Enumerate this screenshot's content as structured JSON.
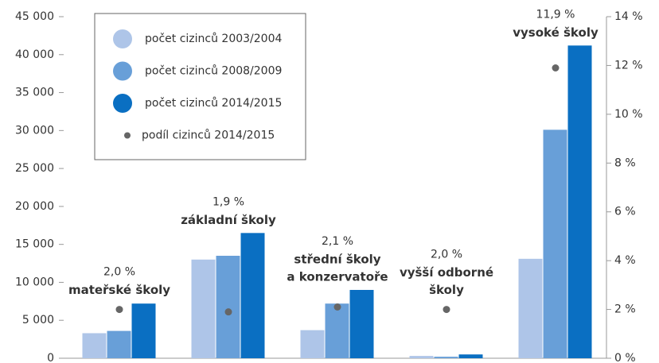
{
  "chart_data": {
    "type": "bar",
    "categories": [
      [
        "mateřské školy"
      ],
      [
        "základní školy"
      ],
      [
        "střední školy",
        "a konzervatoře"
      ],
      [
        "vyšší odborné",
        "školy"
      ],
      [
        "vysoké školy"
      ]
    ],
    "series": [
      {
        "name": "počet cizinců  2003/2004",
        "color": "#aec5e8",
        "values": [
          3300,
          13000,
          3700,
          300,
          13100
        ]
      },
      {
        "name": "počet cizinců  2008/2009",
        "color": "#689fd8",
        "values": [
          3600,
          13500,
          7200,
          200,
          30100
        ]
      },
      {
        "name": "počet cizinců  2014/2015",
        "color": "#0a6fc2",
        "values": [
          7200,
          16500,
          9000,
          500,
          41200
        ]
      },
      {
        "name": "podíl cizinců 2014/2015",
        "color": "#666666",
        "axis": "y2",
        "values": [
          2.0,
          1.9,
          2.1,
          2.0,
          11.9
        ],
        "value_labels": [
          "2,0 %",
          "1,9 %",
          "2,1 %",
          "2,0 %",
          "11,9 %"
        ]
      }
    ],
    "ylim": [
      0,
      45000
    ],
    "yticks": [
      0,
      {
        "value": 5000,
        "label": "5 000"
      },
      {
        "value": 10000,
        "label": "10 000"
      },
      {
        "value": 15000,
        "label": "15 000"
      },
      {
        "value": 20000,
        "label": "20 000"
      },
      {
        "value": 25000,
        "label": "25 000"
      },
      {
        "value": 30000,
        "label": "30 000"
      },
      {
        "value": 35000,
        "label": "35 000"
      },
      {
        "value": 40000,
        "label": "40 000"
      },
      {
        "value": 45000,
        "label": "45 000"
      }
    ],
    "y2lim": [
      0,
      14
    ],
    "y2ticks": [
      {
        "value": 0,
        "label": "0 %"
      },
      {
        "value": 2,
        "label": "2 %"
      },
      {
        "value": 4,
        "label": "4 %"
      },
      {
        "value": 6,
        "label": "6 %"
      },
      {
        "value": 8,
        "label": "8 %"
      },
      {
        "value": 10,
        "label": "10 %"
      },
      {
        "value": 12,
        "label": "12 %"
      },
      {
        "value": 14,
        "label": "14 %"
      }
    ],
    "legend": "top-left"
  }
}
